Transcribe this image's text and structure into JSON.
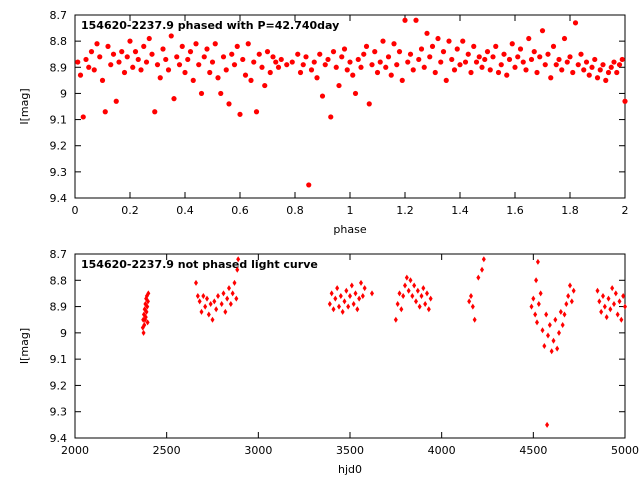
{
  "colors": {
    "points": "#ff0000",
    "axes": "#000000",
    "background": "#ffffff"
  },
  "chart_data": [
    {
      "type": "scatter",
      "title": "154620-2237.9 phased with P=42.740day",
      "xlabel": "phase",
      "ylabel": "I[mag]",
      "xlim": [
        0,
        2
      ],
      "ylim": [
        9.4,
        8.7
      ],
      "y_inverted": true,
      "grid": false,
      "legend": "none",
      "marker": "filled-circle",
      "xticks": [
        "0",
        "0.2",
        "0.4",
        "0.6",
        "0.8",
        "1",
        "1.2",
        "1.4",
        "1.6",
        "1.8",
        "2"
      ],
      "yticks": [
        "8.7",
        "8.8",
        "8.9",
        "9",
        "9.1",
        "9.2",
        "9.3",
        "9.4"
      ],
      "points": [
        [
          0.01,
          8.88
        ],
        [
          0.02,
          8.93
        ],
        [
          0.03,
          9.09
        ],
        [
          0.04,
          8.87
        ],
        [
          0.05,
          8.9
        ],
        [
          0.06,
          8.84
        ],
        [
          0.07,
          8.91
        ],
        [
          0.08,
          8.81
        ],
        [
          0.09,
          8.86
        ],
        [
          0.1,
          8.95
        ],
        [
          0.11,
          9.07
        ],
        [
          0.12,
          8.82
        ],
        [
          0.13,
          8.89
        ],
        [
          0.14,
          8.85
        ],
        [
          0.15,
          9.03
        ],
        [
          0.16,
          8.88
        ],
        [
          0.17,
          8.84
        ],
        [
          0.18,
          8.92
        ],
        [
          0.19,
          8.86
        ],
        [
          0.2,
          8.8
        ],
        [
          0.21,
          8.9
        ],
        [
          0.22,
          8.84
        ],
        [
          0.23,
          8.87
        ],
        [
          0.24,
          8.91
        ],
        [
          0.25,
          8.82
        ],
        [
          0.26,
          8.88
        ],
        [
          0.27,
          8.79
        ],
        [
          0.28,
          8.85
        ],
        [
          0.29,
          9.07
        ],
        [
          0.3,
          8.89
        ],
        [
          0.31,
          8.94
        ],
        [
          0.32,
          8.83
        ],
        [
          0.33,
          8.87
        ],
        [
          0.34,
          8.91
        ],
        [
          0.35,
          8.78
        ],
        [
          0.36,
          9.02
        ],
        [
          0.37,
          8.86
        ],
        [
          0.38,
          8.89
        ],
        [
          0.39,
          8.82
        ],
        [
          0.4,
          8.92
        ],
        [
          0.41,
          8.87
        ],
        [
          0.42,
          8.84
        ],
        [
          0.43,
          8.95
        ],
        [
          0.44,
          8.81
        ],
        [
          0.45,
          8.89
        ],
        [
          0.46,
          9.0
        ],
        [
          0.47,
          8.86
        ],
        [
          0.48,
          8.83
        ],
        [
          0.49,
          8.92
        ],
        [
          0.5,
          8.88
        ],
        [
          0.51,
          8.81
        ],
        [
          0.52,
          8.94
        ],
        [
          0.53,
          9.0
        ],
        [
          0.54,
          8.86
        ],
        [
          0.55,
          8.91
        ],
        [
          0.56,
          9.04
        ],
        [
          0.57,
          8.85
        ],
        [
          0.58,
          8.89
        ],
        [
          0.59,
          8.82
        ],
        [
          0.6,
          9.08
        ],
        [
          0.61,
          8.87
        ],
        [
          0.62,
          8.93
        ],
        [
          0.63,
          8.81
        ],
        [
          0.64,
          8.95
        ],
        [
          0.65,
          8.88
        ],
        [
          0.66,
          9.07
        ],
        [
          0.67,
          8.85
        ],
        [
          0.68,
          8.9
        ],
        [
          0.69,
          8.97
        ],
        [
          0.7,
          8.84
        ],
        [
          0.71,
          8.92
        ],
        [
          0.72,
          8.86
        ],
        [
          0.73,
          8.88
        ],
        [
          0.74,
          8.9
        ],
        [
          0.75,
          8.87
        ],
        [
          0.77,
          8.89
        ],
        [
          0.79,
          8.88
        ],
        [
          0.81,
          8.85
        ],
        [
          0.82,
          8.92
        ],
        [
          0.83,
          8.89
        ],
        [
          0.84,
          8.86
        ],
        [
          0.85,
          9.35
        ],
        [
          0.86,
          8.91
        ],
        [
          0.87,
          8.88
        ],
        [
          0.88,
          8.94
        ],
        [
          0.89,
          8.85
        ],
        [
          0.9,
          9.01
        ],
        [
          0.91,
          8.89
        ],
        [
          0.92,
          8.87
        ],
        [
          0.93,
          9.09
        ],
        [
          0.94,
          8.84
        ],
        [
          0.95,
          8.9
        ],
        [
          0.96,
          8.97
        ],
        [
          0.97,
          8.86
        ],
        [
          0.98,
          8.83
        ],
        [
          0.99,
          8.91
        ],
        [
          1.0,
          8.88
        ],
        [
          1.01,
          8.93
        ],
        [
          1.02,
          9.0
        ],
        [
          1.03,
          8.87
        ],
        [
          1.04,
          8.9
        ],
        [
          1.05,
          8.85
        ],
        [
          1.06,
          8.82
        ],
        [
          1.07,
          9.04
        ],
        [
          1.08,
          8.89
        ],
        [
          1.09,
          8.84
        ],
        [
          1.1,
          8.92
        ],
        [
          1.11,
          8.88
        ],
        [
          1.12,
          8.8
        ],
        [
          1.13,
          8.9
        ],
        [
          1.14,
          8.86
        ],
        [
          1.15,
          8.93
        ],
        [
          1.16,
          8.81
        ],
        [
          1.17,
          8.89
        ],
        [
          1.18,
          8.84
        ],
        [
          1.19,
          8.95
        ],
        [
          1.2,
          8.72
        ],
        [
          1.21,
          8.88
        ],
        [
          1.22,
          8.85
        ],
        [
          1.23,
          8.91
        ],
        [
          1.24,
          8.72
        ],
        [
          1.25,
          8.87
        ],
        [
          1.26,
          8.83
        ],
        [
          1.27,
          8.9
        ],
        [
          1.28,
          8.77
        ],
        [
          1.29,
          8.86
        ],
        [
          1.3,
          8.82
        ],
        [
          1.31,
          8.92
        ],
        [
          1.32,
          8.79
        ],
        [
          1.33,
          8.88
        ],
        [
          1.34,
          8.84
        ],
        [
          1.35,
          8.95
        ],
        [
          1.36,
          8.8
        ],
        [
          1.37,
          8.87
        ],
        [
          1.38,
          8.91
        ],
        [
          1.39,
          8.83
        ],
        [
          1.4,
          8.89
        ],
        [
          1.41,
          8.8
        ],
        [
          1.42,
          8.88
        ],
        [
          1.43,
          8.85
        ],
        [
          1.44,
          8.92
        ],
        [
          1.45,
          8.82
        ],
        [
          1.46,
          8.88
        ],
        [
          1.47,
          8.86
        ],
        [
          1.48,
          8.9
        ],
        [
          1.49,
          8.87
        ],
        [
          1.5,
          8.84
        ],
        [
          1.51,
          8.91
        ],
        [
          1.52,
          8.86
        ],
        [
          1.53,
          8.82
        ],
        [
          1.54,
          8.92
        ],
        [
          1.55,
          8.89
        ],
        [
          1.56,
          8.85
        ],
        [
          1.57,
          8.93
        ],
        [
          1.58,
          8.87
        ],
        [
          1.59,
          8.81
        ],
        [
          1.6,
          8.9
        ],
        [
          1.61,
          8.86
        ],
        [
          1.62,
          8.83
        ],
        [
          1.63,
          8.88
        ],
        [
          1.64,
          8.91
        ],
        [
          1.65,
          8.79
        ],
        [
          1.66,
          8.87
        ],
        [
          1.67,
          8.84
        ],
        [
          1.68,
          8.92
        ],
        [
          1.69,
          8.86
        ],
        [
          1.7,
          8.76
        ],
        [
          1.71,
          8.89
        ],
        [
          1.72,
          8.85
        ],
        [
          1.73,
          8.94
        ],
        [
          1.74,
          8.82
        ],
        [
          1.75,
          8.89
        ],
        [
          1.76,
          8.87
        ],
        [
          1.77,
          8.91
        ],
        [
          1.78,
          8.79
        ],
        [
          1.79,
          8.88
        ],
        [
          1.8,
          8.86
        ],
        [
          1.81,
          8.92
        ],
        [
          1.82,
          8.73
        ],
        [
          1.83,
          8.89
        ],
        [
          1.84,
          8.85
        ],
        [
          1.85,
          8.91
        ],
        [
          1.86,
          8.88
        ],
        [
          1.87,
          8.93
        ],
        [
          1.88,
          8.9
        ],
        [
          1.89,
          8.87
        ],
        [
          1.9,
          8.94
        ],
        [
          1.91,
          8.91
        ],
        [
          1.92,
          8.89
        ],
        [
          1.93,
          8.95
        ],
        [
          1.94,
          8.92
        ],
        [
          1.95,
          8.9
        ],
        [
          1.96,
          8.88
        ],
        [
          1.97,
          8.92
        ],
        [
          1.98,
          8.89
        ],
        [
          1.99,
          8.87
        ],
        [
          2.0,
          9.03
        ]
      ]
    },
    {
      "type": "scatter",
      "title": "154620-2237.9 not phased light curve",
      "xlabel": "hjd0",
      "ylabel": "I[mag]",
      "xlim": [
        2000,
        5000
      ],
      "ylim": [
        9.4,
        8.7
      ],
      "y_inverted": true,
      "grid": false,
      "legend": "none",
      "marker": "diamond",
      "xticks": [
        "2000",
        "2500",
        "3000",
        "3500",
        "4000",
        "4500",
        "5000"
      ],
      "yticks": [
        "8.7",
        "8.8",
        "8.9",
        "9",
        "9.1",
        "9.2",
        "9.3",
        "9.4"
      ],
      "points": [
        [
          2370,
          8.98
        ],
        [
          2372,
          8.95
        ],
        [
          2374,
          9.0
        ],
        [
          2376,
          8.93
        ],
        [
          2378,
          8.97
        ],
        [
          2380,
          8.91
        ],
        [
          2382,
          8.95
        ],
        [
          2384,
          8.89
        ],
        [
          2386,
          8.94
        ],
        [
          2388,
          8.87
        ],
        [
          2390,
          8.92
        ],
        [
          2392,
          8.86
        ],
        [
          2394,
          8.9
        ],
        [
          2396,
          8.96
        ],
        [
          2398,
          8.88
        ],
        [
          2400,
          8.85
        ],
        [
          2660,
          8.81
        ],
        [
          2670,
          8.86
        ],
        [
          2680,
          8.88
        ],
        [
          2690,
          8.92
        ],
        [
          2700,
          8.86
        ],
        [
          2710,
          8.9
        ],
        [
          2720,
          8.87
        ],
        [
          2730,
          8.93
        ],
        [
          2740,
          8.89
        ],
        [
          2750,
          8.95
        ],
        [
          2760,
          8.88
        ],
        [
          2770,
          8.91
        ],
        [
          2780,
          8.86
        ],
        [
          2800,
          8.89
        ],
        [
          2810,
          8.85
        ],
        [
          2820,
          8.92
        ],
        [
          2830,
          8.87
        ],
        [
          2840,
          8.83
        ],
        [
          2850,
          8.89
        ],
        [
          2860,
          8.85
        ],
        [
          2870,
          8.81
        ],
        [
          2880,
          8.87
        ],
        [
          2885,
          8.76
        ],
        [
          2890,
          8.72
        ],
        [
          3390,
          8.89
        ],
        [
          3400,
          8.85
        ],
        [
          3410,
          8.91
        ],
        [
          3420,
          8.87
        ],
        [
          3430,
          8.83
        ],
        [
          3440,
          8.9
        ],
        [
          3450,
          8.86
        ],
        [
          3460,
          8.92
        ],
        [
          3470,
          8.88
        ],
        [
          3480,
          8.84
        ],
        [
          3490,
          8.9
        ],
        [
          3500,
          8.86
        ],
        [
          3510,
          8.82
        ],
        [
          3520,
          8.89
        ],
        [
          3530,
          8.85
        ],
        [
          3540,
          8.91
        ],
        [
          3550,
          8.87
        ],
        [
          3560,
          8.81
        ],
        [
          3570,
          8.86
        ],
        [
          3580,
          8.83
        ],
        [
          3620,
          8.85
        ],
        [
          3750,
          8.95
        ],
        [
          3760,
          8.89
        ],
        [
          3770,
          8.85
        ],
        [
          3780,
          8.91
        ],
        [
          3790,
          8.86
        ],
        [
          3800,
          8.82
        ],
        [
          3810,
          8.79
        ],
        [
          3820,
          8.84
        ],
        [
          3830,
          8.8
        ],
        [
          3840,
          8.86
        ],
        [
          3850,
          8.82
        ],
        [
          3860,
          8.88
        ],
        [
          3870,
          8.84
        ],
        [
          3880,
          8.9
        ],
        [
          3890,
          8.86
        ],
        [
          3900,
          8.83
        ],
        [
          3910,
          8.89
        ],
        [
          3920,
          8.85
        ],
        [
          3930,
          8.91
        ],
        [
          3940,
          8.87
        ],
        [
          4150,
          8.88
        ],
        [
          4160,
          8.86
        ],
        [
          4170,
          8.9
        ],
        [
          4180,
          8.95
        ],
        [
          4200,
          8.79
        ],
        [
          4220,
          8.76
        ],
        [
          4230,
          8.72
        ],
        [
          4490,
          8.9
        ],
        [
          4500,
          8.87
        ],
        [
          4510,
          8.93
        ],
        [
          4515,
          8.8
        ],
        [
          4520,
          8.96
        ],
        [
          4525,
          8.73
        ],
        [
          4530,
          8.89
        ],
        [
          4540,
          8.85
        ],
        [
          4550,
          8.99
        ],
        [
          4560,
          9.05
        ],
        [
          4570,
          8.93
        ],
        [
          4575,
          9.35
        ],
        [
          4580,
          9.01
        ],
        [
          4590,
          8.97
        ],
        [
          4600,
          9.07
        ],
        [
          4610,
          9.03
        ],
        [
          4620,
          8.95
        ],
        [
          4630,
          9.06
        ],
        [
          4640,
          9.0
        ],
        [
          4650,
          8.92
        ],
        [
          4660,
          8.97
        ],
        [
          4670,
          8.93
        ],
        [
          4680,
          8.89
        ],
        [
          4690,
          8.86
        ],
        [
          4700,
          8.82
        ],
        [
          4710,
          8.88
        ],
        [
          4720,
          8.84
        ],
        [
          4850,
          8.84
        ],
        [
          4860,
          8.88
        ],
        [
          4870,
          8.92
        ],
        [
          4880,
          8.86
        ],
        [
          4890,
          8.9
        ],
        [
          4900,
          8.94
        ],
        [
          4910,
          8.87
        ],
        [
          4920,
          8.91
        ],
        [
          4930,
          8.83
        ],
        [
          4940,
          8.89
        ],
        [
          4950,
          8.85
        ],
        [
          4960,
          8.93
        ],
        [
          4970,
          8.88
        ],
        [
          4980,
          8.95
        ],
        [
          4990,
          8.86
        ],
        [
          5000,
          8.9
        ]
      ]
    }
  ]
}
